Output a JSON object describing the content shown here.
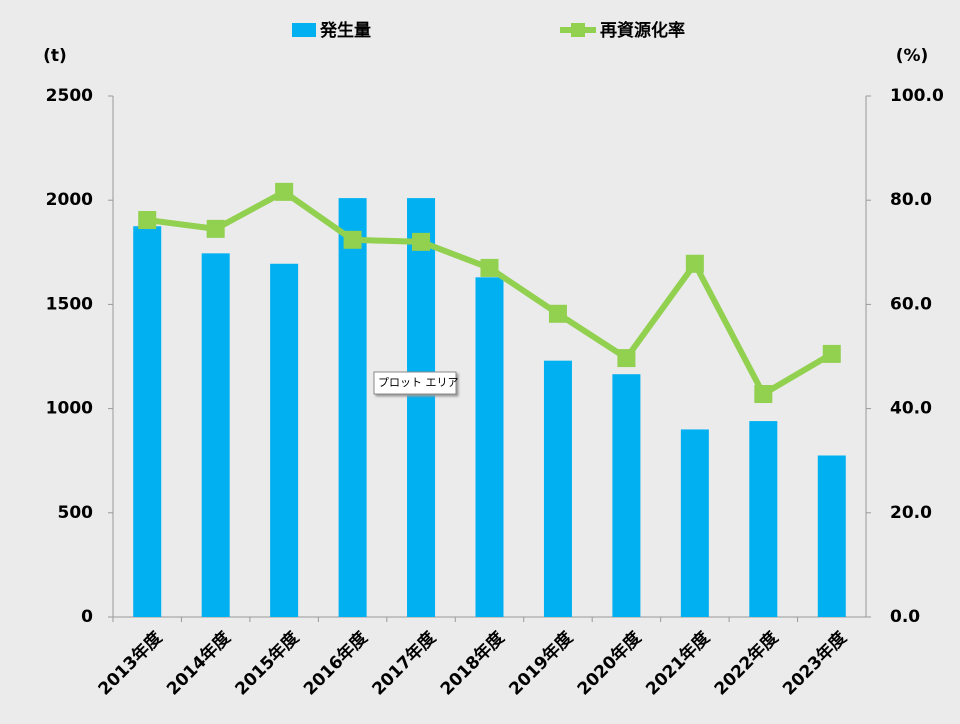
{
  "chart_data": {
    "type": "bar_line",
    "categories": [
      "2013年度",
      "2014年度",
      "2015年度",
      "2016年度",
      "2017年度",
      "2018年度",
      "2019年度",
      "2020年度",
      "2021年度",
      "2022年度",
      "2023年度"
    ],
    "series": [
      {
        "name": "発生量",
        "type": "bar",
        "color": "#00b0f0",
        "values": [
          1875,
          1745,
          1695,
          2010,
          2010,
          1630,
          1230,
          1165,
          900,
          940,
          775
        ]
      },
      {
        "name": "再資源化率",
        "type": "line",
        "axis": "y2",
        "color": "#92d050",
        "values": [
          76.2,
          74.5,
          81.6,
          72.4,
          72.0,
          67.0,
          58.2,
          49.7,
          67.8,
          42.8,
          50.5
        ]
      }
    ],
    "y_label": "(t)",
    "y2_label": "(%)",
    "ylim": [
      0,
      2500
    ],
    "yticks": [
      0,
      500,
      1000,
      1500,
      2000,
      2500
    ],
    "y2lim": [
      0,
      100
    ],
    "y2ticks": [
      {
        "value": 0,
        "label": "0.0"
      },
      {
        "value": 20,
        "label": "20.0"
      },
      {
        "value": 40,
        "label": "40.0"
      },
      {
        "value": 60,
        "label": "60.0"
      },
      {
        "value": 80,
        "label": "80.0"
      },
      {
        "value": 100,
        "label": "100.0"
      }
    ],
    "annotation": "プロット エリア"
  }
}
